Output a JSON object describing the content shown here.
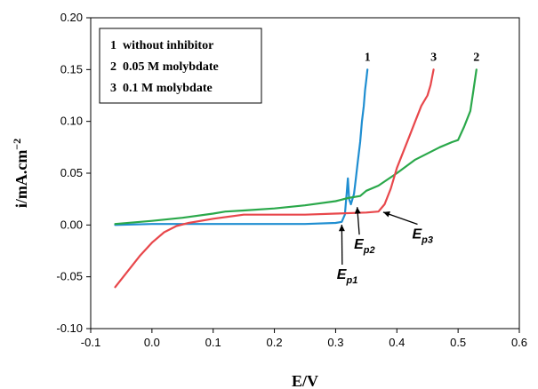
{
  "chart_data": {
    "type": "line",
    "title": "",
    "xlabel": "E/V",
    "ylabel_base": "i/mA.cm",
    "ylabel_exp": "−2",
    "xlim": [
      -0.1,
      0.6
    ],
    "ylim": [
      -0.1,
      0.2
    ],
    "xticks": [
      -0.1,
      0.0,
      0.1,
      0.2,
      0.3,
      0.4,
      0.5,
      0.6
    ],
    "xtick_labels": [
      "-0.1",
      "0.0",
      "0.1",
      "0.2",
      "0.3",
      "0.4",
      "0.5",
      "0.6"
    ],
    "yticks": [
      -0.1,
      -0.05,
      0.0,
      0.05,
      0.1,
      0.15,
      0.2
    ],
    "ytick_labels": [
      "-0.10",
      "-0.05",
      "0.00",
      "0.05",
      "0.10",
      "0.15",
      "0.20"
    ],
    "grid": false,
    "legend_placement": "top-left",
    "legend": [
      "1  without inhibitor",
      "2  0.05 M molybdate",
      "3  0.1 M molybdate"
    ],
    "series": [
      {
        "tag": "1",
        "color": "#1f8ed1",
        "x": [
          -0.06,
          0.0,
          0.1,
          0.2,
          0.25,
          0.3,
          0.31,
          0.315,
          0.318,
          0.32,
          0.322,
          0.325,
          0.33,
          0.333,
          0.336,
          0.34,
          0.343,
          0.346,
          0.348,
          0.35,
          0.352
        ],
        "y": [
          0.0,
          0.001,
          0.001,
          0.001,
          0.001,
          0.002,
          0.003,
          0.01,
          0.03,
          0.045,
          0.025,
          0.02,
          0.03,
          0.045,
          0.06,
          0.08,
          0.1,
          0.115,
          0.13,
          0.14,
          0.15
        ]
      },
      {
        "tag": "2",
        "color": "#2aa84a",
        "x": [
          -0.06,
          0.0,
          0.05,
          0.1,
          0.12,
          0.15,
          0.2,
          0.25,
          0.3,
          0.32,
          0.34,
          0.35,
          0.37,
          0.4,
          0.43,
          0.45,
          0.47,
          0.49,
          0.5,
          0.51,
          0.52,
          0.525,
          0.53
        ],
        "y": [
          0.001,
          0.004,
          0.007,
          0.011,
          0.013,
          0.014,
          0.016,
          0.019,
          0.023,
          0.026,
          0.028,
          0.033,
          0.038,
          0.05,
          0.063,
          0.069,
          0.075,
          0.08,
          0.082,
          0.095,
          0.11,
          0.13,
          0.15
        ]
      },
      {
        "tag": "3",
        "color": "#e8474b",
        "x": [
          -0.06,
          -0.04,
          -0.02,
          0.0,
          0.02,
          0.04,
          0.06,
          0.1,
          0.15,
          0.2,
          0.25,
          0.3,
          0.35,
          0.37,
          0.38,
          0.39,
          0.4,
          0.41,
          0.42,
          0.43,
          0.44,
          0.45,
          0.455,
          0.46
        ],
        "y": [
          -0.06,
          -0.045,
          -0.03,
          -0.017,
          -0.007,
          -0.001,
          0.002,
          0.006,
          0.01,
          0.01,
          0.01,
          0.011,
          0.012,
          0.013,
          0.02,
          0.035,
          0.055,
          0.07,
          0.085,
          0.1,
          0.115,
          0.125,
          0.135,
          0.15
        ]
      }
    ],
    "annotations": [
      {
        "base": "E",
        "sub": "p1",
        "x": 0.302,
        "y": -0.052,
        "target": [
          0.31,
          0.002
        ]
      },
      {
        "base": "E",
        "sub": "p2",
        "x": 0.33,
        "y": -0.023,
        "target": [
          0.335,
          0.019
        ]
      },
      {
        "base": "E",
        "sub": "p3",
        "x": 0.425,
        "y": -0.013,
        "target": [
          0.375,
          0.013
        ]
      }
    ]
  }
}
